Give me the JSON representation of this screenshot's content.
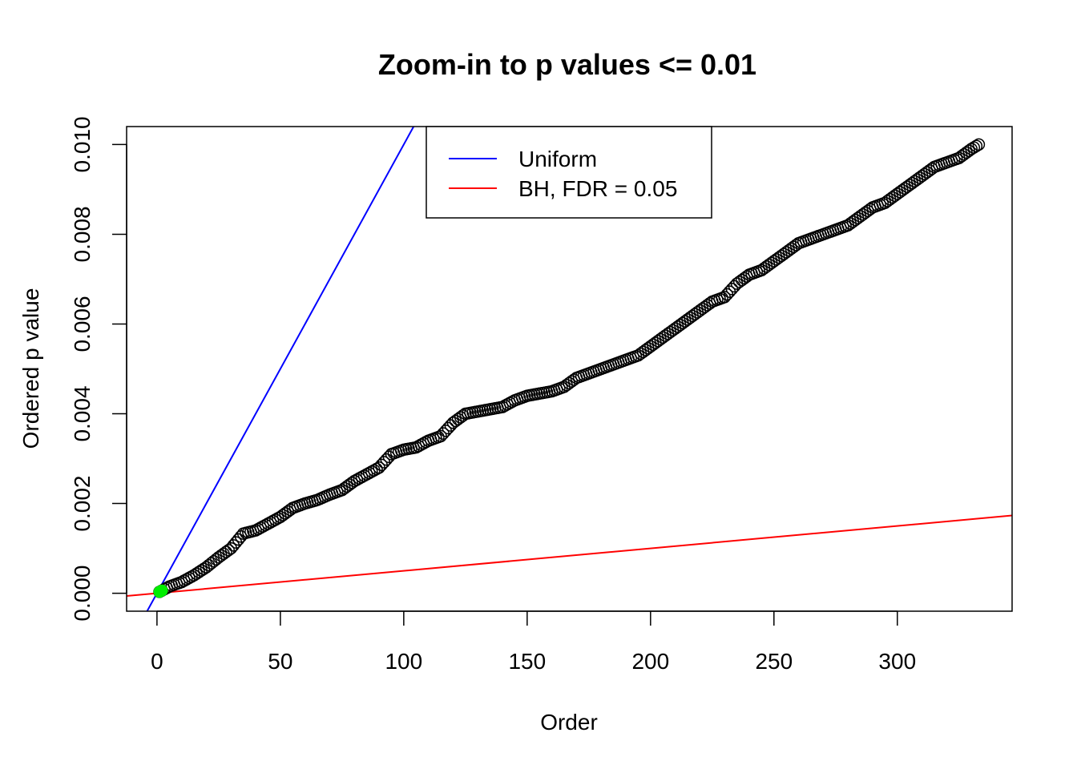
{
  "chart_data": {
    "type": "scatter",
    "title": "Zoom-in to p values <= 0.01",
    "xlabel": "Order",
    "ylabel": "Ordered p value",
    "xlim": [
      -12.3,
      346.5
    ],
    "ylim": [
      -0.0004,
      0.0104
    ],
    "x_ticks": [
      0,
      50,
      100,
      150,
      200,
      250,
      300
    ],
    "y_ticks": [
      0.0,
      0.002,
      0.004,
      0.006,
      0.008,
      0.01
    ],
    "x_tick_labels": [
      "0",
      "50",
      "100",
      "150",
      "200",
      "250",
      "300"
    ],
    "y_tick_labels": [
      "0.000",
      "0.002",
      "0.004",
      "0.006",
      "0.008",
      "0.010"
    ],
    "grid": false,
    "legend_position": "top-center",
    "legend": [
      {
        "label": "Uniform",
        "color": "#0000ff"
      },
      {
        "label": "BH, FDR = 0.05",
        "color": "#ff0000"
      }
    ],
    "lines": [
      {
        "name": "Uniform",
        "slope": 0.0001,
        "intercept": 0,
        "color": "#0000ff"
      },
      {
        "name": "BH, FDR = 0.05",
        "slope": 5e-06,
        "intercept": 0,
        "color": "#ff0000"
      }
    ],
    "series": [
      {
        "marker": "open-circle",
        "color": "#000000",
        "points_count": 333,
        "x_range": [
          1,
          333
        ],
        "y_profile": [
          [
            1,
            3e-05
          ],
          [
            5,
            0.00015
          ],
          [
            10,
            0.00025
          ],
          [
            15,
            0.0004
          ],
          [
            20,
            0.00058
          ],
          [
            25,
            0.0008
          ],
          [
            30,
            0.001
          ],
          [
            35,
            0.00133
          ],
          [
            40,
            0.0014
          ],
          [
            45,
            0.00155
          ],
          [
            50,
            0.0017
          ],
          [
            55,
            0.0019
          ],
          [
            60,
            0.002
          ],
          [
            65,
            0.00208
          ],
          [
            70,
            0.0022
          ],
          [
            75,
            0.0023
          ],
          [
            80,
            0.0025
          ],
          [
            85,
            0.00265
          ],
          [
            90,
            0.0028
          ],
          [
            95,
            0.0031
          ],
          [
            100,
            0.0032
          ],
          [
            105,
            0.00325
          ],
          [
            110,
            0.0034
          ],
          [
            115,
            0.0035
          ],
          [
            120,
            0.0038
          ],
          [
            125,
            0.004
          ],
          [
            130,
            0.00405
          ],
          [
            135,
            0.0041
          ],
          [
            140,
            0.00415
          ],
          [
            145,
            0.0043
          ],
          [
            150,
            0.0044
          ],
          [
            155,
            0.00445
          ],
          [
            160,
            0.0045
          ],
          [
            165,
            0.0046
          ],
          [
            170,
            0.0048
          ],
          [
            175,
            0.0049
          ],
          [
            180,
            0.005
          ],
          [
            185,
            0.0051
          ],
          [
            190,
            0.0052
          ],
          [
            195,
            0.0053
          ],
          [
            200,
            0.0055
          ],
          [
            205,
            0.0057
          ],
          [
            210,
            0.0059
          ],
          [
            215,
            0.0061
          ],
          [
            220,
            0.0063
          ],
          [
            225,
            0.0065
          ],
          [
            230,
            0.0066
          ],
          [
            235,
            0.0069
          ],
          [
            240,
            0.0071
          ],
          [
            245,
            0.0072
          ],
          [
            250,
            0.0074
          ],
          [
            255,
            0.0076
          ],
          [
            260,
            0.0078
          ],
          [
            265,
            0.0079
          ],
          [
            270,
            0.008
          ],
          [
            275,
            0.0081
          ],
          [
            280,
            0.0082
          ],
          [
            285,
            0.0084
          ],
          [
            290,
            0.0086
          ],
          [
            295,
            0.0087
          ],
          [
            300,
            0.0089
          ],
          [
            305,
            0.0091
          ],
          [
            310,
            0.0093
          ],
          [
            315,
            0.0095
          ],
          [
            320,
            0.0096
          ],
          [
            325,
            0.0097
          ],
          [
            330,
            0.0099
          ],
          [
            333,
            0.01
          ]
        ]
      },
      {
        "marker": "filled-circle",
        "color": "#00ee00",
        "points": [
          [
            1,
            3e-05
          ],
          [
            2,
            6e-05
          ]
        ]
      }
    ]
  }
}
